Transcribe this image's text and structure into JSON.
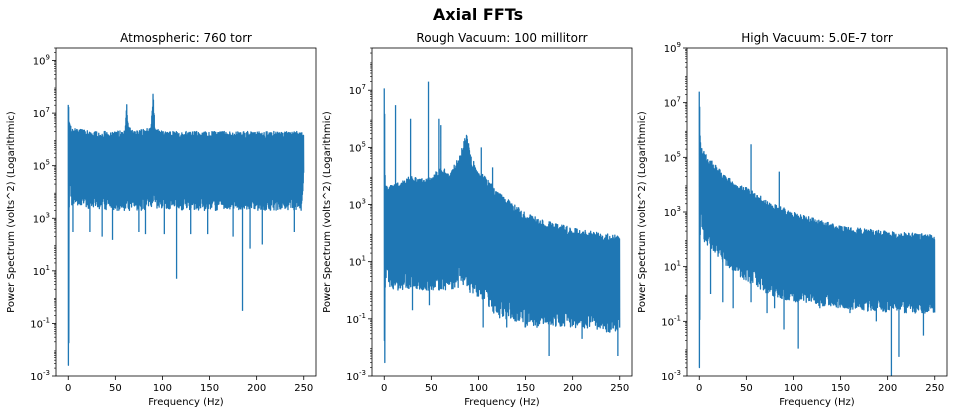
{
  "figure": {
    "title": "Axial FFTs",
    "series_color": "#1f77b4"
  },
  "chart_data": [
    {
      "type": "line",
      "title": "Atmospheric: 760 torr",
      "xlabel": "Frequency (Hz)",
      "ylabel": "Power Spectrum (volts^2) (Logarithmic)",
      "yscale": "log",
      "xlim": [
        -13,
        263
      ],
      "ylim": [
        0.001,
        3000000000
      ],
      "xticks": [
        0,
        50,
        100,
        150,
        200,
        250
      ],
      "xtick_labels": [
        "0",
        "50",
        "100",
        "150",
        "200",
        "250"
      ],
      "yticks": [
        0.001,
        0.1,
        10,
        1000,
        100000,
        10000000,
        1000000000
      ],
      "ytick_labels": [
        "10^-3",
        "10^-1",
        "10^1",
        "10^3",
        "10^5",
        "10^7",
        "10^9"
      ],
      "envelope": {
        "x": [
          0,
          0.4,
          1,
          3,
          10,
          30,
          50,
          60,
          62,
          64,
          70,
          88,
          90,
          92,
          100,
          150,
          200,
          248,
          250
        ],
        "upper": [
          100000000,
          100000000,
          5000000,
          3000000,
          2500000,
          2000000,
          2000000,
          2500000,
          30000000,
          3000000,
          2000000,
          3000000,
          80000000,
          3000000,
          2000000,
          2000000,
          2000000,
          2000000,
          2000000
        ],
        "lower": [
          0.001,
          0.001,
          30000,
          3000,
          3000,
          2000,
          2000,
          2000,
          3000,
          2000,
          2000,
          2000,
          3000,
          2000,
          2000,
          2000,
          2000,
          2000,
          50000
        ]
      },
      "dips": [
        [
          5,
          300
        ],
        [
          23,
          300
        ],
        [
          36,
          200
        ],
        [
          47,
          150
        ],
        [
          75,
          300
        ],
        [
          82,
          250
        ],
        [
          102,
          250
        ],
        [
          115,
          5
        ],
        [
          130,
          250
        ],
        [
          148,
          250
        ],
        [
          175,
          200
        ],
        [
          185,
          0.3
        ],
        [
          193,
          70
        ],
        [
          206,
          100
        ],
        [
          240,
          300
        ]
      ],
      "spikes": []
    },
    {
      "type": "line",
      "title": "Rough Vacuum: 100 millitorr",
      "xlabel": "Frequency (Hz)",
      "ylabel": "Power Spectrum (volts^2) (Logarithmic)",
      "yscale": "log",
      "xlim": [
        -13,
        263
      ],
      "ylim": [
        0.001,
        300000000
      ],
      "xticks": [
        0,
        50,
        100,
        150,
        200,
        250
      ],
      "xtick_labels": [
        "0",
        "50",
        "100",
        "150",
        "200",
        "250"
      ],
      "yticks": [
        0.001,
        0.1,
        10,
        1000,
        100000,
        10000000
      ],
      "ytick_labels": [
        "10^-3",
        "10^-1",
        "10^1",
        "10^3",
        "10^5",
        "10^7"
      ],
      "envelope": {
        "x": [
          0,
          0.4,
          1,
          5,
          10,
          20,
          30,
          40,
          50,
          60,
          70,
          80,
          85,
          88,
          92,
          100,
          110,
          120,
          150,
          200,
          250
        ],
        "upper": [
          12000000,
          12000000,
          5000,
          4000,
          6000,
          8000,
          10000,
          8000,
          10000,
          20000,
          15000,
          50000,
          200000,
          300000,
          50000,
          15000,
          8000,
          3000,
          500,
          150,
          80
        ],
        "lower": [
          0.001,
          0.001,
          3,
          1,
          1,
          1,
          1,
          1,
          1,
          1,
          1,
          1,
          1,
          1,
          0.7,
          0.5,
          0.3,
          0.1,
          0.05,
          0.05,
          0.03
        ]
      },
      "dips": [
        [
          30,
          0.2
        ],
        [
          48,
          0.3
        ],
        [
          105,
          0.05
        ],
        [
          130,
          0.05
        ],
        [
          175,
          0.005
        ],
        [
          210,
          0.02
        ],
        [
          248,
          0.005
        ]
      ],
      "spikes": [
        [
          12,
          3000000
        ],
        [
          28,
          1000000
        ],
        [
          47,
          20000000
        ],
        [
          58,
          1000000
        ],
        [
          60,
          600000
        ],
        [
          103,
          100000
        ],
        [
          115,
          20000
        ]
      ]
    },
    {
      "type": "line",
      "title": "High Vacuum: 5.0E-7 torr",
      "xlabel": "Frequency (Hz)",
      "ylabel": "Power Spectrum (volts^2) (Logarithmic)",
      "yscale": "log",
      "xlim": [
        -13,
        263
      ],
      "ylim": [
        0.001,
        1000000000
      ],
      "xticks": [
        0,
        50,
        100,
        150,
        200,
        250
      ],
      "xtick_labels": [
        "0",
        "50",
        "100",
        "150",
        "200",
        "250"
      ],
      "yticks": [
        0.001,
        0.1,
        10,
        1000,
        100000,
        10000000,
        1000000000
      ],
      "ytick_labels": [
        "10^-3",
        "10^-1",
        "10^1",
        "10^3",
        "10^5",
        "10^7",
        "10^9"
      ],
      "envelope": {
        "x": [
          0,
          0.4,
          1,
          3,
          10,
          20,
          30,
          40,
          50,
          60,
          70,
          80,
          100,
          150,
          200,
          250
        ],
        "upper": [
          50000000,
          50000000,
          400000,
          200000,
          100000,
          40000,
          20000,
          10000,
          8000,
          5000,
          3000,
          2000,
          1000,
          300,
          200,
          150
        ],
        "lower": [
          0.001,
          0.001,
          1000,
          100,
          50,
          20,
          10,
          5,
          3,
          2,
          1,
          0.8,
          0.5,
          0.3,
          0.2,
          0.2
        ]
      },
      "dips": [
        [
          12,
          1
        ],
        [
          25,
          0.5
        ],
        [
          36,
          0.3
        ],
        [
          55,
          0.5
        ],
        [
          72,
          0.2
        ],
        [
          80,
          0.3
        ],
        [
          90,
          0.05
        ],
        [
          105,
          0.01
        ],
        [
          128,
          0.3
        ],
        [
          160,
          0.2
        ],
        [
          188,
          0.1
        ],
        [
          204,
          0.001
        ],
        [
          212,
          0.005
        ],
        [
          238,
          0.03
        ]
      ],
      "spikes": [
        [
          55,
          300000
        ],
        [
          85,
          30000
        ]
      ]
    }
  ]
}
